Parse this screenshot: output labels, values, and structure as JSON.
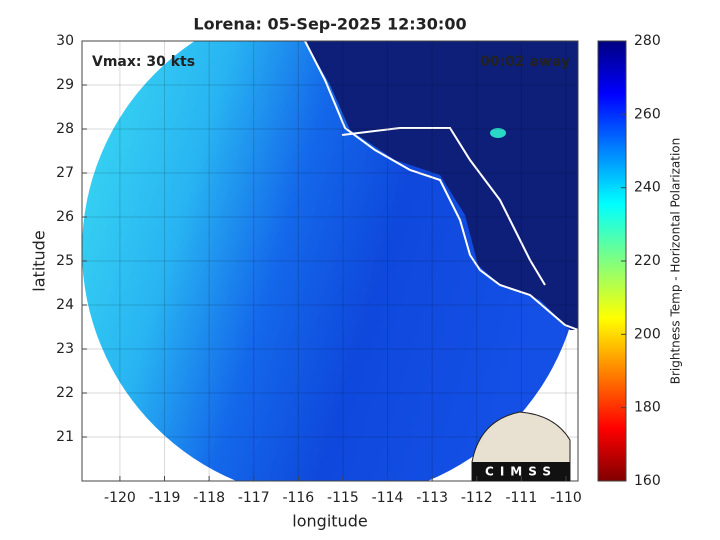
{
  "chart_data": {
    "type": "image-map",
    "title": "Lorena: 05-Sep-2025 12:30:00",
    "xlabel": "longitude",
    "ylabel": "latitude",
    "annotations": [
      "Vmax: 30 kts",
      "00:02 away"
    ],
    "logo_text": "CIMSS",
    "xlim": [
      -120.85,
      -109.73
    ],
    "ylim": [
      20,
      30
    ],
    "xticks": [
      -120,
      -119,
      -118,
      -117,
      -116,
      -115,
      -114,
      -113,
      -112,
      -111,
      -110
    ],
    "yticks": [
      21,
      22,
      23,
      24,
      25,
      26,
      27,
      28,
      29,
      30
    ],
    "grid": true,
    "colorbar": {
      "label": "Brightness Temp - Horizontal Polarization",
      "lim": [
        160,
        280
      ],
      "ticks": [
        160,
        180,
        200,
        220,
        240,
        260,
        280
      ]
    }
  }
}
